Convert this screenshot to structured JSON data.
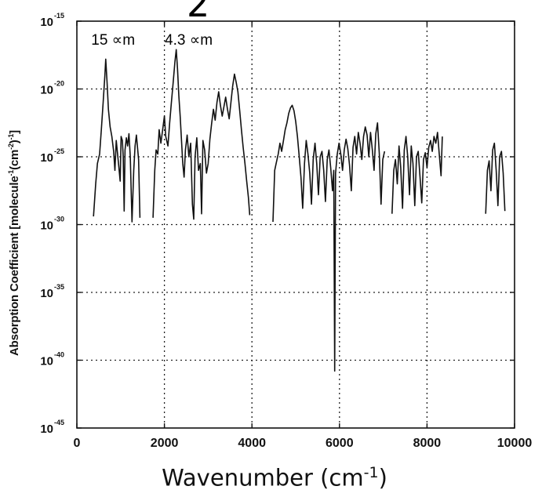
{
  "chart_data": {
    "type": "line",
    "title": "",
    "xlabel": "Wavenumber (cm",
    "xlabel_sup": "-1",
    "xlabel_close": ")",
    "ylabel": "Absorption Coefficient [molecule",
    "ylabel_sup1": "-1",
    "ylabel_mid": "(cm",
    "ylabel_sup2": "-2",
    "ylabel_mid2": ")",
    "ylabel_sup3": "-1",
    "ylabel_end": "]",
    "xlim": [
      0,
      10000
    ],
    "ylim_log10": [
      -45,
      -15
    ],
    "y_scale": "log",
    "grid": true,
    "grid_style": "dotted",
    "x_ticks": [
      "0",
      "2000",
      "4000",
      "6000",
      "8000",
      "10000"
    ],
    "y_ticks": [
      {
        "base": "10",
        "exp": "-15"
      },
      {
        "base": "10",
        "exp": "-20"
      },
      {
        "base": "10",
        "exp": "-25"
      },
      {
        "base": "10",
        "exp": "-30"
      },
      {
        "base": "10",
        "exp": "-35"
      },
      {
        "base": "10",
        "exp": "-40"
      },
      {
        "base": "10",
        "exp": "-45"
      }
    ],
    "annotations": [
      {
        "text": "15 ∝m",
        "x": 650,
        "y_log10": -16.4
      },
      {
        "text": "4.3 ∝m",
        "x": 2330,
        "y_log10": -16.4
      }
    ],
    "top_glyphs": [
      "2"
    ],
    "series": [
      {
        "color": "#111111",
        "bands": [
          [
            [
              380,
              -29.4
            ],
            [
              430,
              -27
            ],
            [
              470,
              -25.5
            ],
            [
              520,
              -24.8
            ],
            [
              560,
              -23
            ],
            [
              600,
              -21
            ],
            [
              640,
              -19
            ],
            [
              660,
              -17.8
            ],
            [
              690,
              -19.5
            ],
            [
              720,
              -21.5
            ],
            [
              760,
              -22.8
            ],
            [
              800,
              -23.5
            ],
            [
              840,
              -24.6
            ],
            [
              870,
              -26
            ],
            [
              900,
              -23.8
            ],
            [
              930,
              -24.8
            ],
            [
              960,
              -25.8
            ],
            [
              990,
              -26.8
            ],
            [
              1010,
              -23.5
            ],
            [
              1040,
              -23.8
            ],
            [
              1060,
              -25
            ],
            [
              1080,
              -29
            ],
            [
              1100,
              -24.5
            ],
            [
              1130,
              -23.6
            ],
            [
              1160,
              -24.2
            ],
            [
              1190,
              -23.3
            ],
            [
              1220,
              -25
            ],
            [
              1260,
              -29.8
            ],
            [
              1300,
              -26
            ],
            [
              1330,
              -24.2
            ],
            [
              1360,
              -23.4
            ],
            [
              1390,
              -24.5
            ],
            [
              1410,
              -25.2
            ],
            [
              1440,
              -29.5
            ]
          ],
          [
            [
              1740,
              -29.5
            ],
            [
              1780,
              -26
            ],
            [
              1810,
              -24.5
            ],
            [
              1850,
              -24.8
            ],
            [
              1880,
              -23
            ],
            [
              1920,
              -24
            ],
            [
              1960,
              -23
            ],
            [
              2000,
              -22
            ],
            [
              2030,
              -23.5
            ],
            [
              2080,
              -24.2
            ],
            [
              2120,
              -22.5
            ],
            [
              2160,
              -21
            ],
            [
              2200,
              -19.5
            ],
            [
              2240,
              -18
            ],
            [
              2270,
              -17.1
            ],
            [
              2300,
              -18.5
            ],
            [
              2330,
              -20.5
            ],
            [
              2360,
              -22
            ],
            [
              2390,
              -23.8
            ],
            [
              2420,
              -25.5
            ],
            [
              2450,
              -26.5
            ],
            [
              2480,
              -24.5
            ],
            [
              2520,
              -23.4
            ],
            [
              2560,
              -25
            ],
            [
              2600,
              -24
            ],
            [
              2640,
              -28.5
            ],
            [
              2670,
              -29.6
            ],
            [
              2700,
              -25
            ],
            [
              2740,
              -23.6
            ],
            [
              2780,
              -26
            ],
            [
              2820,
              -25.5
            ],
            [
              2850,
              -29.2
            ],
            [
              2880,
              -23.8
            ],
            [
              2920,
              -24.5
            ],
            [
              2960,
              -26.2
            ],
            [
              3000,
              -25.5
            ],
            [
              3040,
              -23.7
            ],
            [
              3080,
              -22.5
            ],
            [
              3120,
              -21.5
            ],
            [
              3160,
              -22.3
            ],
            [
              3200,
              -21
            ],
            [
              3240,
              -20.2
            ],
            [
              3280,
              -21.2
            ],
            [
              3320,
              -22
            ],
            [
              3360,
              -21.3
            ],
            [
              3400,
              -20.6
            ],
            [
              3440,
              -21.5
            ],
            [
              3480,
              -22.2
            ],
            [
              3520,
              -21
            ],
            [
              3560,
              -19.8
            ],
            [
              3600,
              -18.9
            ],
            [
              3640,
              -19.5
            ],
            [
              3680,
              -20.2
            ],
            [
              3720,
              -21.6
            ],
            [
              3760,
              -23
            ],
            [
              3800,
              -24.3
            ],
            [
              3840,
              -25.5
            ],
            [
              3880,
              -26.8
            ],
            [
              3920,
              -28
            ],
            [
              3950,
              -29.3
            ]
          ],
          [
            [
              4480,
              -29.8
            ],
            [
              4520,
              -26
            ],
            [
              4560,
              -25.4
            ],
            [
              4600,
              -24.8
            ],
            [
              4640,
              -24
            ],
            [
              4680,
              -24.6
            ],
            [
              4720,
              -23.8
            ],
            [
              4760,
              -23
            ],
            [
              4800,
              -22.5
            ],
            [
              4840,
              -21.8
            ],
            [
              4880,
              -21.4
            ],
            [
              4920,
              -21.2
            ],
            [
              4960,
              -21.6
            ],
            [
              5000,
              -22.4
            ],
            [
              5040,
              -23.5
            ],
            [
              5080,
              -25
            ],
            [
              5120,
              -26.5
            ],
            [
              5160,
              -28.8
            ],
            [
              5200,
              -25.5
            ],
            [
              5240,
              -23.8
            ],
            [
              5280,
              -24.8
            ],
            [
              5320,
              -26.2
            ],
            [
              5360,
              -28.5
            ],
            [
              5400,
              -25.2
            ],
            [
              5440,
              -24
            ],
            [
              5480,
              -25.5
            ],
            [
              5520,
              -27.8
            ],
            [
              5560,
              -25
            ],
            [
              5600,
              -24.6
            ],
            [
              5640,
              -26
            ],
            [
              5680,
              -28.3
            ],
            [
              5720,
              -25.2
            ],
            [
              5760,
              -24.5
            ],
            [
              5800,
              -25.8
            ],
            [
              5840,
              -27.5
            ],
            [
              5870,
              -26
            ],
            [
              5890,
              -40.8
            ],
            [
              5910,
              -26.2
            ],
            [
              5950,
              -24.8
            ],
            [
              5990,
              -24
            ],
            [
              6030,
              -24.8
            ],
            [
              6070,
              -26
            ],
            [
              6110,
              -24.5
            ],
            [
              6150,
              -23.7
            ],
            [
              6190,
              -24.4
            ],
            [
              6230,
              -25.6
            ],
            [
              6270,
              -27.5
            ],
            [
              6310,
              -24.3
            ],
            [
              6350,
              -23.5
            ],
            [
              6390,
              -24.8
            ],
            [
              6430,
              -23.2
            ],
            [
              6470,
              -24
            ],
            [
              6510,
              -25.2
            ],
            [
              6550,
              -23.5
            ],
            [
              6590,
              -22.8
            ],
            [
              6630,
              -23.4
            ],
            [
              6670,
              -25
            ],
            [
              6710,
              -23.2
            ],
            [
              6750,
              -24.5
            ],
            [
              6790,
              -26
            ],
            [
              6830,
              -23.3
            ],
            [
              6870,
              -22.5
            ],
            [
              6910,
              -24.8
            ],
            [
              6950,
              -28.5
            ],
            [
              6990,
              -25.2
            ],
            [
              7030,
              -24.6
            ]
          ],
          [
            [
              7200,
              -29.2
            ],
            [
              7240,
              -26
            ],
            [
              7280,
              -25.2
            ],
            [
              7320,
              -27
            ],
            [
              7360,
              -24.2
            ],
            [
              7400,
              -25.8
            ],
            [
              7440,
              -28.8
            ],
            [
              7480,
              -24.5
            ],
            [
              7520,
              -23.5
            ],
            [
              7560,
              -25
            ],
            [
              7600,
              -27.8
            ],
            [
              7640,
              -24.2
            ],
            [
              7680,
              -25.5
            ],
            [
              7720,
              -28.6
            ],
            [
              7760,
              -25
            ],
            [
              7800,
              -24.6
            ],
            [
              7840,
              -26.5
            ],
            [
              7880,
              -28.4
            ],
            [
              7920,
              -25.2
            ],
            [
              7960,
              -24.7
            ],
            [
              8000,
              -25.8
            ],
            [
              8040,
              -24.3
            ],
            [
              8080,
              -23.8
            ],
            [
              8120,
              -24.6
            ],
            [
              8160,
              -23.5
            ],
            [
              8200,
              -24
            ],
            [
              8240,
              -23.2
            ],
            [
              8280,
              -24.8
            ],
            [
              8320,
              -26.4
            ],
            [
              8350,
              -23.5
            ]
          ],
          [
            [
              9340,
              -29.2
            ],
            [
              9380,
              -26
            ],
            [
              9420,
              -25.3
            ],
            [
              9460,
              -27.5
            ],
            [
              9500,
              -24.5
            ],
            [
              9540,
              -24
            ],
            [
              9580,
              -26
            ],
            [
              9620,
              -28.6
            ],
            [
              9660,
              -25
            ],
            [
              9700,
              -24.6
            ],
            [
              9740,
              -26.2
            ],
            [
              9780,
              -29
            ]
          ]
        ]
      }
    ]
  }
}
